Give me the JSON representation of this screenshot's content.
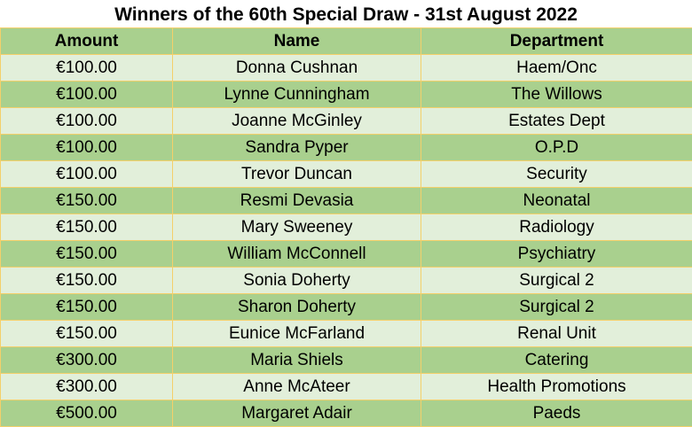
{
  "title": "Winners of the 60th Special Draw - 31st August 2022",
  "columns": [
    "Amount",
    "Name",
    "Department"
  ],
  "rows": [
    [
      "€100.00",
      "Donna Cushnan",
      "Haem/Onc"
    ],
    [
      "€100.00",
      "Lynne Cunningham",
      "The Willows"
    ],
    [
      "€100.00",
      "Joanne McGinley",
      "Estates Dept"
    ],
    [
      "€100.00",
      "Sandra Pyper",
      "O.P.D"
    ],
    [
      "€100.00",
      "Trevor Duncan",
      "Security"
    ],
    [
      "€150.00",
      "Resmi Devasia",
      "Neonatal"
    ],
    [
      "€150.00",
      "Mary Sweeney",
      "Radiology"
    ],
    [
      "€150.00",
      "William McConnell",
      "Psychiatry"
    ],
    [
      "€150.00",
      "Sonia Doherty",
      "Surgical 2"
    ],
    [
      "€150.00",
      "Sharon Doherty",
      "Surgical 2"
    ],
    [
      "€150.00",
      "Eunice McFarland",
      "Renal Unit"
    ],
    [
      "€300.00",
      "Maria Shiels",
      "Catering"
    ],
    [
      "€300.00",
      "Anne McAteer",
      "Health Promotions"
    ],
    [
      "€500.00",
      "Margaret Adair",
      "Paeds"
    ]
  ],
  "colors": {
    "header_row": "#a9d08e",
    "light_row": "#e2efda",
    "border": "#f4d06a"
  }
}
